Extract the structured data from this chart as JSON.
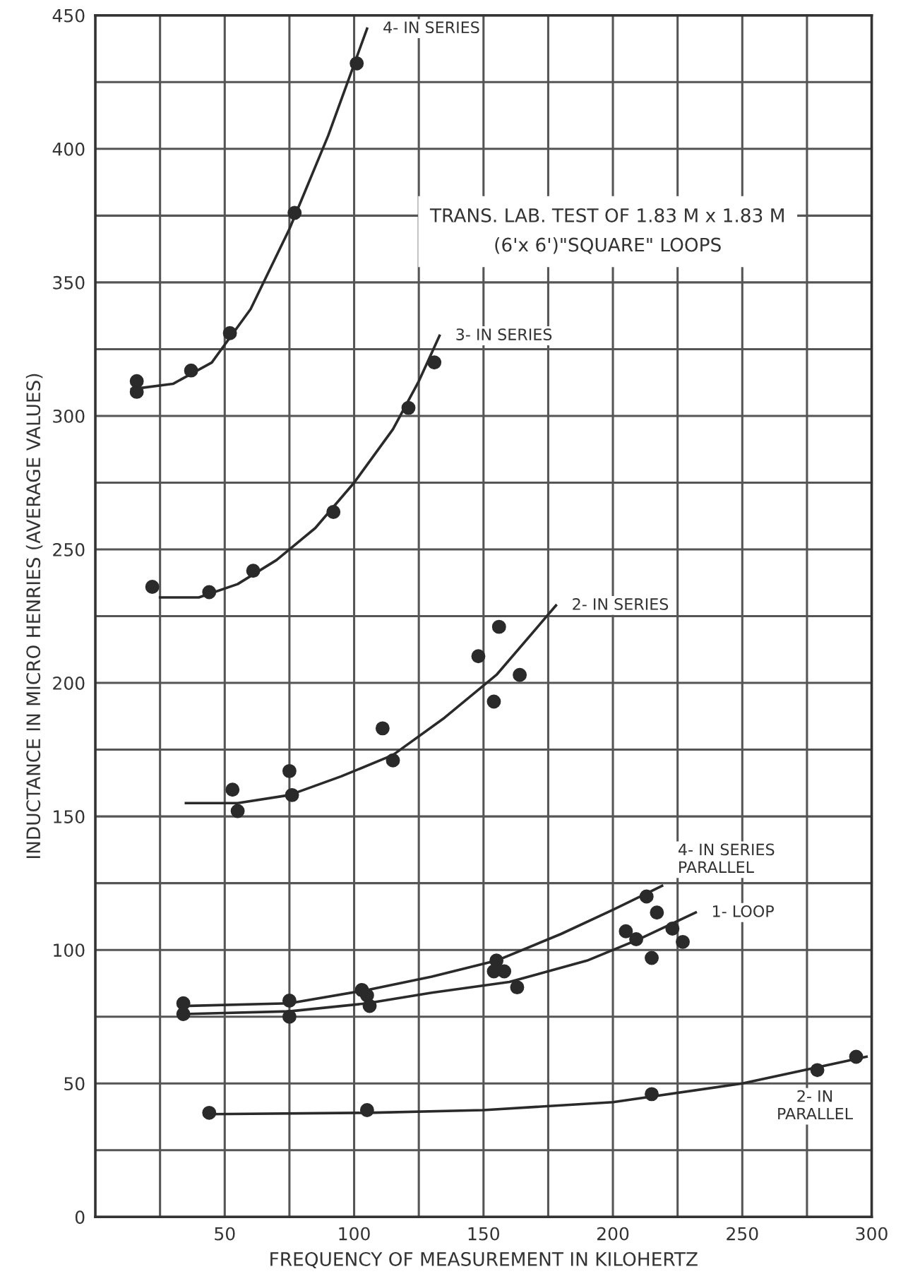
{
  "chart_data": {
    "type": "scatter",
    "title": "TRANS. LAB. TEST OF 1.83 M x 1.83 M\n(6'x 6')\"SQUARE\" LOOPS",
    "xlabel": "FREQUENCY OF MEASUREMENT IN KILOHERTZ",
    "ylabel": "INDUCTANCE IN MICRO HENRIES (AVERAGE VALUES)",
    "xlim": [
      0,
      300
    ],
    "ylim": [
      0,
      450
    ],
    "xticks": [
      {
        "value": 25,
        "label": null
      },
      50,
      {
        "value": 75,
        "label": null
      },
      100,
      {
        "value": 125,
        "label": null
      },
      150,
      {
        "value": 175,
        "label": null
      },
      200,
      {
        "value": 225,
        "label": null
      },
      250,
      {
        "value": 275,
        "label": null
      },
      300
    ],
    "yticks": [
      0,
      {
        "value": 25,
        "label": null
      },
      50,
      {
        "value": 75,
        "label": null
      },
      100,
      {
        "value": 125,
        "label": null
      },
      150,
      {
        "value": 175,
        "label": null
      },
      200,
      {
        "value": 225,
        "label": null
      },
      250,
      {
        "value": 275,
        "label": null
      },
      300,
      {
        "value": 325,
        "label": null
      },
      350,
      {
        "value": 375,
        "label": null
      },
      400,
      {
        "value": 425,
        "label": null
      },
      450
    ],
    "grid": true,
    "marker": "circle",
    "legend": false,
    "series": [
      {
        "color": "#2a2a2a",
        "x": [
          16,
          16,
          37,
          52,
          77,
          101
        ],
        "values": [
          313,
          309,
          317,
          331,
          376,
          432
        ]
      },
      {
        "color": "#2a2a2a",
        "x": [
          22,
          44,
          61,
          92,
          121,
          131
        ],
        "values": [
          236,
          234,
          242,
          264,
          303,
          320
        ]
      },
      {
        "color": "#2a2a2a",
        "x": [
          53,
          55,
          75,
          76,
          111,
          115,
          148,
          154,
          156,
          164
        ],
        "values": [
          160,
          152,
          167,
          158,
          183,
          171,
          210,
          193,
          221,
          203
        ]
      },
      {
        "color": "#2a2a2a",
        "x": [
          34,
          75,
          103,
          105,
          155,
          213,
          217
        ],
        "values": [
          80,
          81,
          85,
          83,
          96,
          120,
          114
        ]
      },
      {
        "color": "#2a2a2a",
        "x": [
          34,
          75,
          106,
          154,
          158,
          163,
          205,
          209,
          215,
          223,
          227
        ],
        "values": [
          76,
          75,
          79,
          92,
          92,
          86,
          107,
          104,
          97,
          108,
          103
        ]
      },
      {
        "color": "#2a2a2a",
        "x": [
          44,
          105,
          215,
          279,
          294
        ],
        "values": [
          39,
          40,
          46,
          55,
          60
        ]
      },
      {
        "type": "line",
        "color": "#2a2a2a",
        "marker": "none",
        "line_style": "solid",
        "x": [
          14,
          30,
          45,
          60,
          75,
          90,
          105
        ],
        "values": [
          310,
          312,
          320,
          340,
          370,
          405,
          445
        ]
      },
      {
        "type": "line",
        "color": "#2a2a2a",
        "marker": "none",
        "line_style": "solid",
        "x": [
          25,
          40,
          55,
          70,
          85,
          100,
          115,
          125,
          133
        ],
        "values": [
          232,
          232,
          237,
          246,
          258,
          275,
          295,
          313,
          330
        ]
      },
      {
        "type": "line",
        "color": "#2a2a2a",
        "marker": "none",
        "line_style": "solid",
        "x": [
          35,
          55,
          75,
          95,
          115,
          135,
          155,
          178
        ],
        "values": [
          155,
          155,
          158,
          165,
          173,
          187,
          203,
          229
        ]
      },
      {
        "type": "line",
        "color": "#2a2a2a",
        "marker": "none",
        "line_style": "solid",
        "x": [
          34,
          75,
          105,
          130,
          155,
          180,
          200,
          219
        ],
        "values": [
          79,
          80,
          85,
          90,
          96,
          106,
          115,
          124
        ]
      },
      {
        "type": "line",
        "color": "#2a2a2a",
        "marker": "none",
        "line_style": "solid",
        "x": [
          34,
          75,
          105,
          130,
          160,
          190,
          210,
          232
        ],
        "values": [
          76,
          77,
          80,
          84,
          88,
          96,
          104,
          114
        ]
      },
      {
        "type": "line",
        "color": "#2a2a2a",
        "marker": "none",
        "line_style": "solid",
        "x": [
          44,
          105,
          150,
          200,
          250,
          298
        ],
        "values": [
          38.5,
          39,
          40,
          43,
          50,
          60
        ]
      }
    ],
    "annotations": [
      {
        "text": "4- IN SERIES",
        "x": 105,
        "y": 445
      },
      {
        "text": "3- IN SERIES",
        "x": 133,
        "y": 330
      },
      {
        "text": "2- IN SERIES",
        "x": 178,
        "y": 229
      },
      {
        "text": "4- IN SERIES\nPARALLEL",
        "x": 219,
        "y": 124
      },
      {
        "text": "1- LOOP",
        "x": 232,
        "y": 114
      },
      {
        "text": "2- IN\nPARALLEL",
        "x": 275,
        "y": 52
      }
    ]
  }
}
